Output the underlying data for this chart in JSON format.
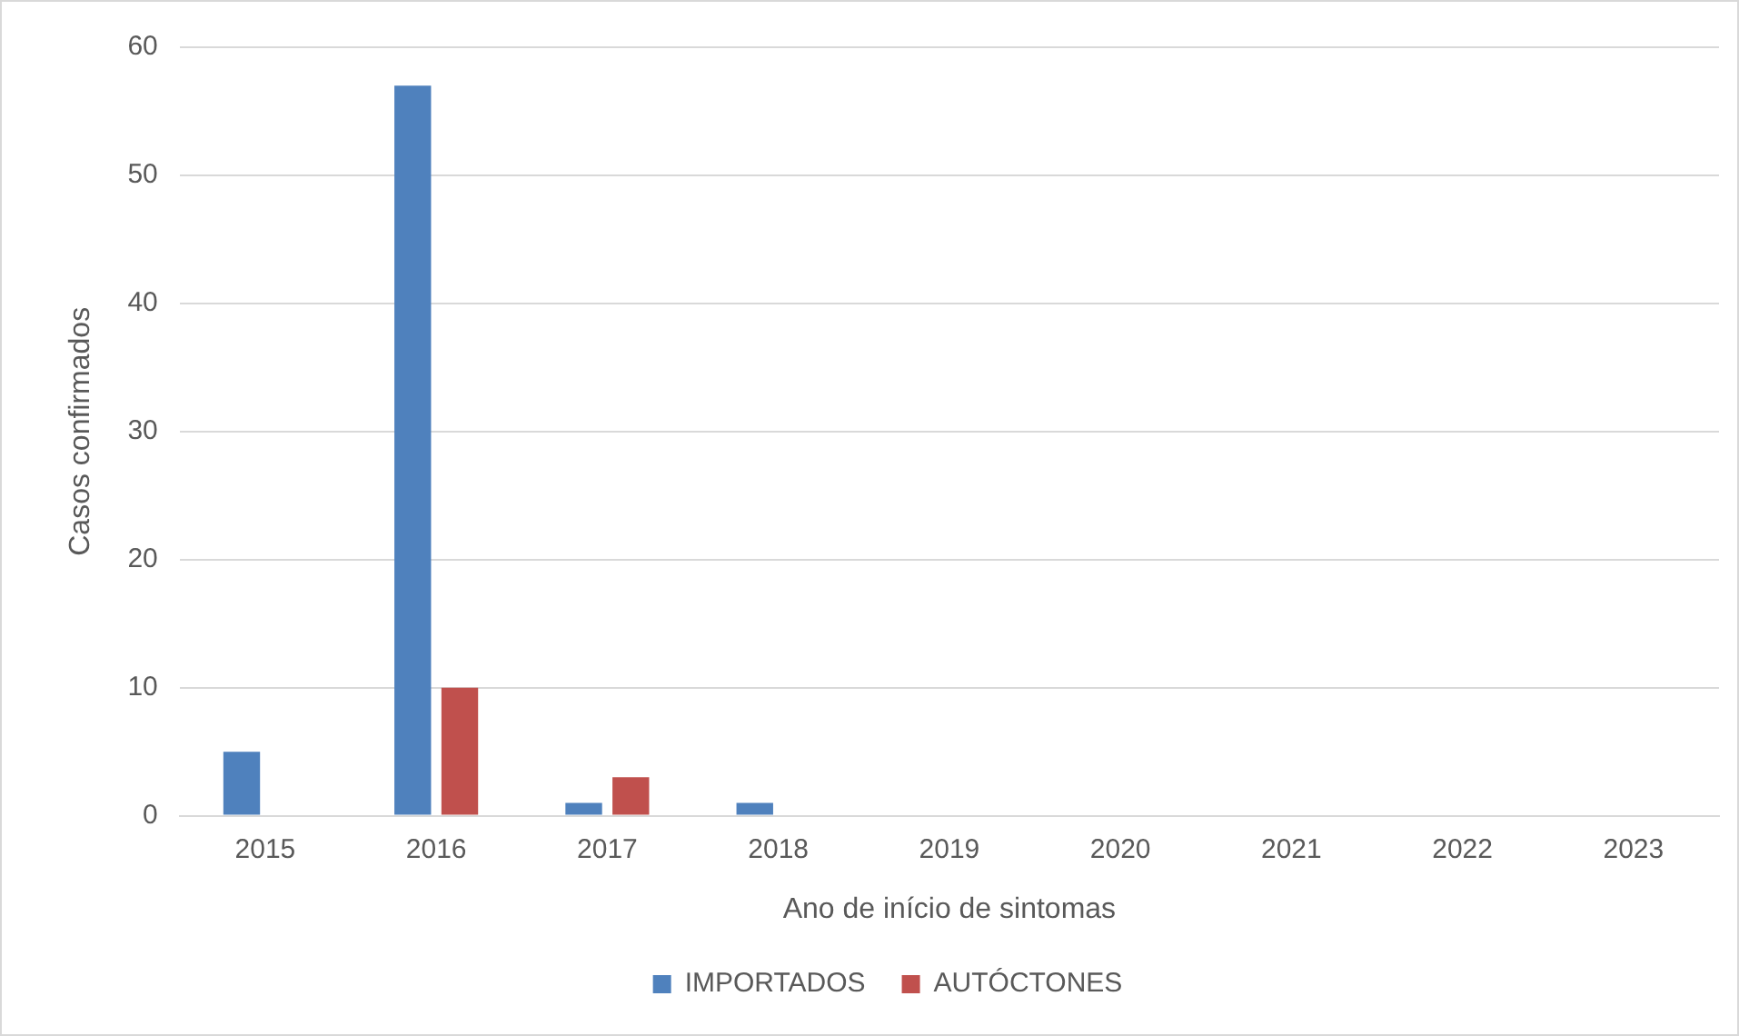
{
  "chart_data": {
    "type": "bar",
    "xlabel": "Ano de início de sintomas",
    "ylabel": "Casos confirmados",
    "categories": [
      "2015",
      "2016",
      "2017",
      "2018",
      "2019",
      "2020",
      "2021",
      "2022",
      "2023"
    ],
    "series": [
      {
        "name": "IMPORTADOS",
        "color": "#4f81bd",
        "values": [
          5,
          57,
          1,
          1,
          0,
          0,
          0,
          0,
          0
        ]
      },
      {
        "name": "AUTÓCTONES",
        "color": "#c0504d",
        "values": [
          0,
          10,
          3,
          0,
          0,
          0,
          0,
          0,
          0
        ]
      }
    ],
    "ylim": [
      0,
      60
    ],
    "yticks": [
      0,
      10,
      20,
      30,
      40,
      50,
      60
    ],
    "grid": "y",
    "legend": "bottom"
  }
}
